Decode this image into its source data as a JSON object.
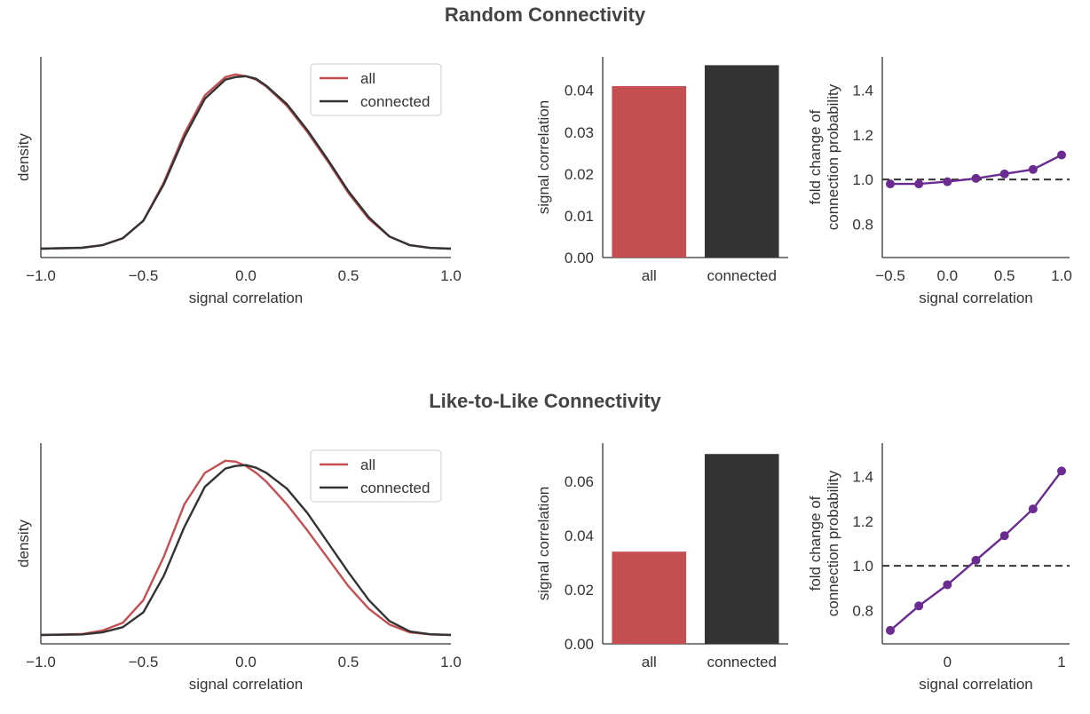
{
  "sections": [
    {
      "title": "Random Connectivity"
    },
    {
      "title": "Like-to-Like Connectivity"
    }
  ],
  "colors": {
    "all": "#c44e52",
    "connected": "#333333",
    "fold": "#6a2c91",
    "axis": "#333333"
  },
  "chart_data": [
    {
      "type": "line",
      "section": "Random Connectivity",
      "xlabel": "signal correlation",
      "ylabel": "density",
      "xlim": [
        -1.0,
        1.0
      ],
      "ylim": [
        0,
        1.05
      ],
      "xticks": [
        "−1.0",
        "−0.5",
        "0.0",
        "0.5",
        "1.0"
      ],
      "xtick_values": [
        -1.0,
        -0.5,
        0.0,
        0.5,
        1.0
      ],
      "legend": {
        "placement": "top-right"
      },
      "series": [
        {
          "name": "all",
          "color_key": "all",
          "x": [
            -1.0,
            -0.8,
            -0.7,
            -0.6,
            -0.5,
            -0.4,
            -0.3,
            -0.2,
            -0.1,
            -0.05,
            0.0,
            0.05,
            0.1,
            0.2,
            0.3,
            0.4,
            0.5,
            0.6,
            0.7,
            0.8,
            0.9,
            1.0
          ],
          "y": [
            0.0,
            0.005,
            0.02,
            0.06,
            0.16,
            0.38,
            0.66,
            0.88,
            0.985,
            1.0,
            0.99,
            0.97,
            0.93,
            0.82,
            0.67,
            0.5,
            0.32,
            0.17,
            0.07,
            0.02,
            0.004,
            0.0
          ]
        },
        {
          "name": "connected",
          "color_key": "connected",
          "x": [
            -1.0,
            -0.8,
            -0.7,
            -0.6,
            -0.5,
            -0.4,
            -0.3,
            -0.2,
            -0.1,
            -0.05,
            0.0,
            0.05,
            0.1,
            0.2,
            0.3,
            0.4,
            0.5,
            0.6,
            0.7,
            0.8,
            0.9,
            1.0
          ],
          "y": [
            0.0,
            0.005,
            0.02,
            0.06,
            0.16,
            0.37,
            0.64,
            0.86,
            0.97,
            0.985,
            0.99,
            0.975,
            0.935,
            0.83,
            0.68,
            0.51,
            0.33,
            0.18,
            0.07,
            0.02,
            0.004,
            0.0
          ]
        }
      ]
    },
    {
      "type": "bar",
      "section": "Random Connectivity",
      "categories": [
        "all",
        "connected"
      ],
      "values": [
        0.041,
        0.046
      ],
      "color_keys": [
        "all",
        "connected"
      ],
      "xlabel": "",
      "ylabel": "signal correlation",
      "ylim": [
        0,
        0.048
      ],
      "yticks": [
        0.0,
        0.01,
        0.02,
        0.03,
        0.04
      ],
      "ytick_labels": [
        "0.00",
        "0.01",
        "0.02",
        "0.03",
        "0.04"
      ]
    },
    {
      "type": "line",
      "section": "Random Connectivity",
      "xlabel": "signal correlation",
      "ylabel": [
        "fold change of",
        "connection probability"
      ],
      "xlim": [
        -0.57,
        1.07
      ],
      "ylim": [
        0.65,
        1.55
      ],
      "xticks": [
        "−0.5",
        "0.0",
        "0.5",
        "1.0"
      ],
      "xtick_values": [
        -0.5,
        0.0,
        0.5,
        1.0
      ],
      "yticks": [
        0.8,
        1.0,
        1.2,
        1.4
      ],
      "ytick_labels": [
        "0.8",
        "1.0",
        "1.2",
        "1.4"
      ],
      "reference_line": 1.0,
      "series": [
        {
          "color_key": "fold",
          "markers": true,
          "x": [
            -0.5,
            -0.25,
            0.0,
            0.25,
            0.5,
            0.75,
            1.0
          ],
          "y": [
            0.98,
            0.98,
            0.99,
            1.005,
            1.025,
            1.045,
            1.11
          ]
        }
      ]
    },
    {
      "type": "line",
      "section": "Like-to-Like Connectivity",
      "xlabel": "signal correlation",
      "ylabel": "density",
      "xlim": [
        -1.0,
        1.0
      ],
      "ylim": [
        0,
        1.05
      ],
      "xticks": [
        "−1.0",
        "−0.5",
        "0.0",
        "0.5",
        "1.0"
      ],
      "xtick_values": [
        -1.0,
        -0.5,
        0.0,
        0.5,
        1.0
      ],
      "legend": {
        "placement": "top-right"
      },
      "series": [
        {
          "name": "all",
          "color_key": "all",
          "x": [
            -1.0,
            -0.8,
            -0.7,
            -0.6,
            -0.5,
            -0.4,
            -0.3,
            -0.2,
            -0.1,
            -0.05,
            0.0,
            0.05,
            0.1,
            0.2,
            0.3,
            0.4,
            0.5,
            0.6,
            0.7,
            0.8,
            0.9,
            1.0
          ],
          "y": [
            0.0,
            0.005,
            0.025,
            0.07,
            0.2,
            0.45,
            0.75,
            0.93,
            1.0,
            0.995,
            0.97,
            0.93,
            0.88,
            0.75,
            0.6,
            0.44,
            0.28,
            0.15,
            0.06,
            0.015,
            0.003,
            0.0
          ]
        },
        {
          "name": "connected",
          "color_key": "connected",
          "x": [
            -1.0,
            -0.8,
            -0.7,
            -0.6,
            -0.5,
            -0.4,
            -0.3,
            -0.2,
            -0.1,
            -0.05,
            0.0,
            0.05,
            0.1,
            0.2,
            0.3,
            0.4,
            0.5,
            0.6,
            0.7,
            0.8,
            0.9,
            1.0
          ],
          "y": [
            0.0,
            0.003,
            0.015,
            0.045,
            0.13,
            0.34,
            0.62,
            0.85,
            0.955,
            0.97,
            0.975,
            0.96,
            0.93,
            0.84,
            0.7,
            0.53,
            0.36,
            0.2,
            0.08,
            0.02,
            0.004,
            0.0
          ]
        }
      ]
    },
    {
      "type": "bar",
      "section": "Like-to-Like Connectivity",
      "categories": [
        "all",
        "connected"
      ],
      "values": [
        0.034,
        0.07
      ],
      "color_keys": [
        "all",
        "connected"
      ],
      "xlabel": "",
      "ylabel": "signal correlation",
      "ylim": [
        0,
        0.074
      ],
      "yticks": [
        0.0,
        0.02,
        0.04,
        0.06
      ],
      "ytick_labels": [
        "0.00",
        "0.02",
        "0.04",
        "0.06"
      ]
    },
    {
      "type": "line",
      "section": "Like-to-Like Connectivity",
      "xlabel": "signal correlation",
      "ylabel": [
        "fold change of",
        "connection probability"
      ],
      "xlim": [
        -0.57,
        1.07
      ],
      "ylim": [
        0.65,
        1.55
      ],
      "xticks": [
        "0",
        "1"
      ],
      "xtick_values": [
        0.0,
        1.0
      ],
      "yticks": [
        0.8,
        1.0,
        1.2,
        1.4
      ],
      "ytick_labels": [
        "0.8",
        "1.0",
        "1.2",
        "1.4"
      ],
      "reference_line": 1.0,
      "series": [
        {
          "color_key": "fold",
          "markers": true,
          "x": [
            -0.5,
            -0.25,
            0.0,
            0.25,
            0.5,
            0.75,
            1.0
          ],
          "y": [
            0.71,
            0.82,
            0.915,
            1.025,
            1.135,
            1.255,
            1.425
          ]
        }
      ]
    }
  ]
}
